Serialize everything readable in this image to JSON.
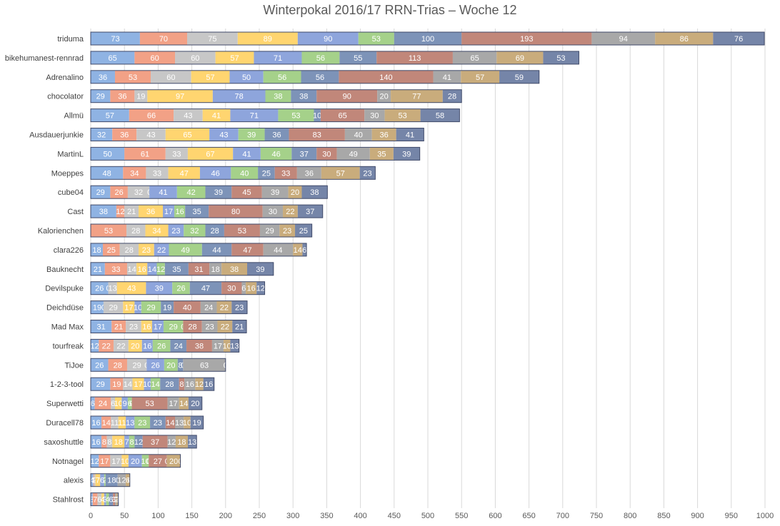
{
  "chart_data": {
    "type": "bar",
    "orientation": "horizontal",
    "stacked": true,
    "title": "Winterpokal 2016/17 RRN-Trias – Woche 12",
    "xlim": [
      0,
      1000
    ],
    "x_ticks": [
      0,
      50,
      100,
      150,
      200,
      250,
      300,
      350,
      400,
      450,
      500,
      550,
      600,
      650,
      700,
      750,
      800,
      850,
      900,
      950,
      1000
    ],
    "grid": "vertical",
    "legend": "none",
    "segment_colors": [
      "#8fb3e3",
      "#f2a186",
      "#c7c7c7",
      "#ffd570",
      "#8ea5dc",
      "#a5d18a",
      "#7d93b8",
      "#c1877a",
      "#a8a8a8",
      "#c9ac7c",
      "#7585a8"
    ],
    "categories": [
      "triduma",
      "bikehumanest-rennrad",
      "Adrenalino",
      "chocolator",
      "Allmü",
      "Ausdauerjunkie",
      "MartinL",
      "Moeppes",
      "cube04",
      "Cast",
      "Kalorienchen",
      "clara226",
      "Bauknecht",
      "Devilspuke",
      "Deichdüse",
      "Mad Max",
      "tourfreak",
      "TiJoe",
      "1-2-3-tool",
      "Superwetti",
      "Duracell78",
      "saxoshuttle",
      "Notnagel",
      "alexis",
      "Stahlrost"
    ],
    "values": [
      [
        73,
        70,
        75,
        89,
        90,
        53,
        100,
        193,
        94,
        86,
        76
      ],
      [
        65,
        60,
        60,
        57,
        71,
        56,
        55,
        113,
        65,
        69,
        53
      ],
      [
        36,
        53,
        60,
        57,
        50,
        56,
        56,
        140,
        41,
        57,
        59
      ],
      [
        29,
        36,
        19,
        97,
        78,
        38,
        38,
        90,
        20,
        77,
        28
      ],
      [
        57,
        66,
        43,
        41,
        71,
        53,
        10,
        65,
        30,
        53,
        58
      ],
      [
        32,
        36,
        43,
        65,
        43,
        39,
        36,
        83,
        40,
        36,
        41
      ],
      [
        50,
        61,
        33,
        67,
        41,
        46,
        37,
        30,
        49,
        35,
        39
      ],
      [
        48,
        34,
        33,
        47,
        46,
        40,
        25,
        33,
        36,
        57,
        23
      ],
      [
        29,
        26,
        32,
        0,
        41,
        42,
        39,
        45,
        39,
        20,
        38
      ],
      [
        38,
        12,
        21,
        36,
        17,
        16,
        35,
        80,
        30,
        22,
        37
      ],
      [
        0,
        53,
        28,
        34,
        23,
        32,
        28,
        53,
        29,
        23,
        25
      ],
      [
        18,
        25,
        28,
        23,
        22,
        49,
        44,
        47,
        44,
        14,
        6
      ],
      [
        21,
        33,
        14,
        16,
        14,
        12,
        35,
        31,
        18,
        38,
        39
      ],
      [
        26,
        0,
        13,
        43,
        39,
        26,
        47,
        30,
        6,
        16,
        12
      ],
      [
        19,
        0,
        29,
        17,
        10,
        29,
        19,
        40,
        24,
        22,
        23
      ],
      [
        31,
        21,
        23,
        16,
        17,
        29,
        0,
        28,
        23,
        22,
        21
      ],
      [
        12,
        22,
        22,
        20,
        16,
        26,
        24,
        38,
        17,
        10,
        13
      ],
      [
        26,
        28,
        29,
        0,
        26,
        20,
        8,
        0,
        63,
        0,
        0
      ],
      [
        29,
        19,
        14,
        17,
        10,
        14,
        28,
        8,
        16,
        12,
        16
      ],
      [
        6,
        24,
        6,
        10,
        9,
        6,
        0,
        53,
        17,
        14,
        20
      ],
      [
        16,
        14,
        11,
        11,
        13,
        23,
        23,
        14,
        13,
        10,
        19
      ],
      [
        16,
        8,
        8,
        18,
        7,
        8,
        12,
        37,
        12,
        18,
        13
      ],
      [
        12,
        17,
        17,
        10,
        20,
        10,
        0,
        27,
        0,
        20,
        0
      ],
      [
        4,
        1,
        2,
        7,
        6,
        2,
        18,
        0,
        12,
        6,
        0
      ],
      [
        3,
        7,
        6,
        4,
        3,
        4,
        6,
        3,
        2,
        2,
        1
      ]
    ]
  }
}
